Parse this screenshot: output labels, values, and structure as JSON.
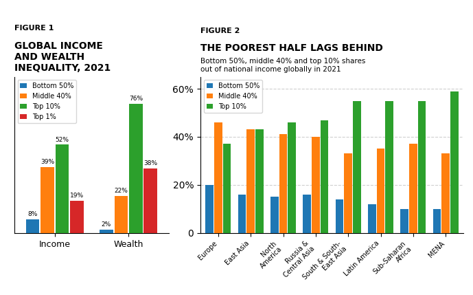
{
  "chart_data": [
    {
      "type": "bar",
      "title": "GLOBAL INCOME\nAND WEALTH\nINEQUALITY, 2021",
      "annotations": [
        "FIGURE 1"
      ],
      "categories": [
        "Income",
        "Wealth"
      ],
      "series": [
        {
          "name": "Bottom 50%",
          "values": [
            8,
            2
          ],
          "value_labels": [
            "8%",
            "2%"
          ]
        },
        {
          "name": "Middle 40%",
          "values": [
            39,
            22
          ],
          "value_labels": [
            "39%",
            "22%"
          ]
        },
        {
          "name": "Top 10%",
          "values": [
            52,
            76
          ],
          "value_labels": [
            "52%",
            "76%"
          ]
        },
        {
          "name": "Top 1%",
          "values": [
            19,
            38
          ],
          "value_labels": [
            "19%",
            "38%"
          ]
        }
      ],
      "ylim": [
        0,
        92
      ],
      "data_labels": true,
      "tick_labels": "x",
      "legend": "upper left"
    },
    {
      "type": "bar",
      "title": "THE POOREST HALF LAGS BEHIND",
      "subtitle": "Bottom 50%, middle 40% and top 10% shares\nout of national income globally in 2021",
      "annotations": [
        "FIGURE 2"
      ],
      "categories": [
        "Europe",
        "East Asia",
        "North\nAmerica",
        "Russia &\nCentral Asia",
        "South & South-\nEast Asia",
        "Latin America",
        "Sub-Saharan\nAfrica",
        "MENA"
      ],
      "series": [
        {
          "name": "Bottom 50%",
          "values": [
            20,
            16,
            15,
            16,
            14,
            12,
            10,
            10
          ]
        },
        {
          "name": "Middle 40%",
          "values": [
            46,
            43,
            41,
            40,
            33,
            35,
            37,
            33
          ]
        },
        {
          "name": "Top 10%",
          "values": [
            37,
            43,
            46,
            47,
            55,
            55,
            55,
            59
          ]
        }
      ],
      "ylim": [
        0,
        65
      ],
      "yticks": [
        0,
        {
          "value": 20,
          "label": "20%"
        },
        {
          "value": 40,
          "label": "40%"
        },
        {
          "value": 60,
          "label": "60%"
        }
      ],
      "grid": true,
      "legend": "upper left"
    }
  ]
}
